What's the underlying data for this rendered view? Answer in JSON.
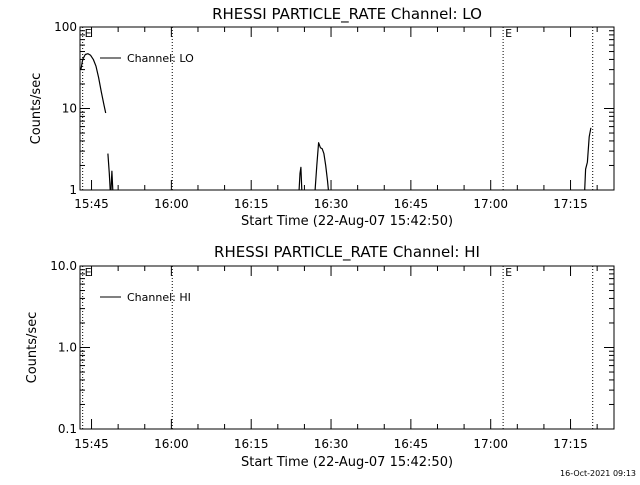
{
  "footer": {
    "timestamp": "16-Oct-2021 09:13"
  },
  "chart_data": [
    {
      "type": "line",
      "title": "RHESSI PARTICLE_RATE Channel: LO",
      "xlabel": "Start Time (22-Aug-07 15:42:50)",
      "ylabel": "Counts/sec",
      "yscale": "log",
      "ylim": [
        1,
        100
      ],
      "xlim": [
        "15:42:50",
        "17:23:10"
      ],
      "x_ticks": [
        "15:45",
        "16:00",
        "16:15",
        "16:30",
        "16:45",
        "17:00",
        "17:15"
      ],
      "y_ticks": [
        "1",
        "10",
        "100"
      ],
      "legend": {
        "position": "top-left",
        "entries": [
          "Channel: LO"
        ]
      },
      "markers": [
        {
          "time": "15:43:20",
          "label": "E"
        },
        {
          "time": "16:00:10",
          "label": ""
        },
        {
          "time": "17:02:20",
          "label": "E"
        },
        {
          "time": "17:19:10",
          "label": ""
        }
      ],
      "series": [
        {
          "name": "Channel: LO",
          "segments": [
            [
              [
                "15:43:00",
                30
              ],
              [
                "15:43:20",
                40
              ],
              [
                "15:43:50",
                46
              ],
              [
                "15:44:20",
                47
              ],
              [
                "15:44:50",
                45
              ],
              [
                "15:45:20",
                40
              ],
              [
                "15:45:50",
                33
              ],
              [
                "15:46:20",
                24
              ],
              [
                "15:46:50",
                16
              ],
              [
                "15:47:20",
                11
              ],
              [
                "15:47:40",
                8.8
              ]
            ],
            [
              [
                "15:48:05",
                2.8
              ],
              [
                "15:48:20",
                1.6
              ],
              [
                "15:48:30",
                1.0
              ]
            ],
            [
              [
                "15:48:40",
                1.0
              ],
              [
                "15:48:50",
                1.7
              ],
              [
                "15:49:00",
                1.0
              ]
            ],
            [
              [
                "16:24:00",
                1.0
              ],
              [
                "16:24:10",
                1.6
              ],
              [
                "16:24:20",
                1.9
              ],
              [
                "16:24:30",
                1.0
              ]
            ],
            [
              [
                "16:27:00",
                1.0
              ],
              [
                "16:27:20",
                2.0
              ],
              [
                "16:27:40",
                3.8
              ],
              [
                "16:28:00",
                3.3
              ],
              [
                "16:28:20",
                3.2
              ],
              [
                "16:28:40",
                2.8
              ],
              [
                "16:29:00",
                2.0
              ],
              [
                "16:29:20",
                1.3
              ],
              [
                "16:29:30",
                1.0
              ]
            ],
            [
              [
                "17:17:40",
                1.0
              ],
              [
                "17:17:50",
                1.8
              ],
              [
                "17:18:10",
                2.2
              ],
              [
                "17:18:30",
                4.5
              ],
              [
                "17:18:50",
                5.8
              ]
            ]
          ]
        }
      ]
    },
    {
      "type": "line",
      "title": "RHESSI PARTICLE_RATE Channel: HI",
      "xlabel": "Start Time (22-Aug-07 15:42:50)",
      "ylabel": "Counts/sec",
      "yscale": "log",
      "ylim": [
        0.1,
        10
      ],
      "xlim": [
        "15:42:50",
        "17:23:10"
      ],
      "x_ticks": [
        "15:45",
        "16:00",
        "16:15",
        "16:30",
        "16:45",
        "17:00",
        "17:15"
      ],
      "y_ticks": [
        "0.1",
        "1.0",
        "10.0"
      ],
      "legend": {
        "position": "top-left",
        "entries": [
          "Channel: HI"
        ]
      },
      "markers": [
        {
          "time": "15:43:20",
          "label": "E"
        },
        {
          "time": "16:00:10",
          "label": ""
        },
        {
          "time": "17:02:20",
          "label": "E"
        },
        {
          "time": "17:19:10",
          "label": ""
        }
      ],
      "series": [
        {
          "name": "Channel: HI",
          "segments": []
        }
      ]
    }
  ]
}
